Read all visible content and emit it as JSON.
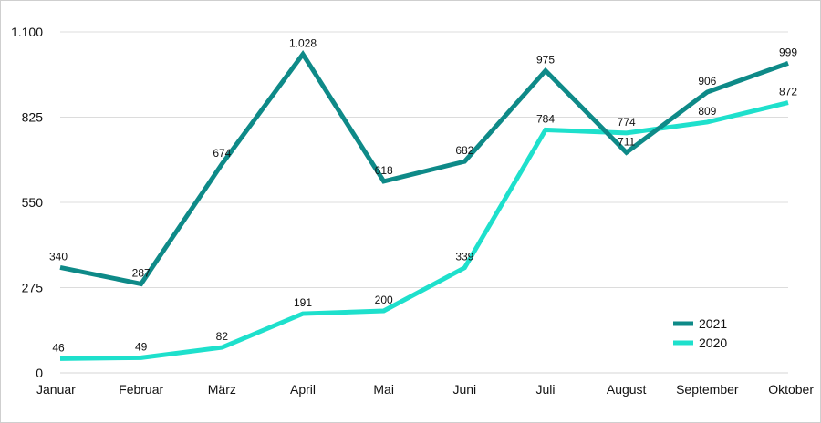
{
  "chart_data": {
    "type": "line",
    "categories": [
      "Januar",
      "Februar",
      "März",
      "April",
      "Mai",
      "Juni",
      "Juli",
      "August",
      "September",
      "Oktober"
    ],
    "series": [
      {
        "name": "2021",
        "color": "#0e8a88",
        "values": [
          340,
          287,
          674,
          1028,
          618,
          682,
          975,
          711,
          906,
          999
        ],
        "labels": [
          "340",
          "287",
          "674",
          "1.028",
          "618",
          "682",
          "975",
          "711",
          "906",
          "999"
        ]
      },
      {
        "name": "2020",
        "color": "#1ee0cc",
        "values": [
          46,
          49,
          82,
          191,
          200,
          339,
          784,
          774,
          809,
          872
        ],
        "labels": [
          "46",
          "49",
          "82",
          "191",
          "200",
          "339",
          "784",
          "774",
          "809",
          "872"
        ]
      }
    ],
    "y_ticks": [
      0,
      275,
      550,
      825,
      1100
    ],
    "y_tick_labels": [
      "0",
      "275",
      "550",
      "825",
      "1.100"
    ],
    "ylim": [
      0,
      1100
    ],
    "grid": true,
    "legend_position": "bottom-right"
  }
}
